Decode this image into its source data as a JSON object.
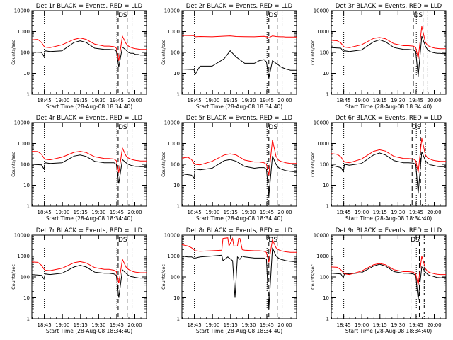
{
  "common": {
    "xlabel": "Start Time (28-Aug-08 18:34:40)",
    "ylabel": "Counts/sec",
    "x_tick_labels": [
      "18:45",
      "19:00",
      "19:15",
      "19:30",
      "19:45",
      "20:00"
    ],
    "y_tick_labels": [
      "1",
      "10",
      "100",
      "1000",
      "10000"
    ],
    "ds_label": "DS",
    "x_range_min": [
      0,
      95
    ],
    "y_range": [
      1,
      10000
    ],
    "y_scale": "log",
    "colors": {
      "events": "#000000",
      "lld": "#ff0000",
      "axes": "#000000"
    }
  },
  "chart_data": [
    {
      "type": "line",
      "title": "Det 1r BLACK = Events, RED = LLD",
      "events": {
        "x": [
          0,
          8,
          10,
          11,
          15,
          25,
          35,
          40,
          45,
          52,
          60,
          64,
          68,
          70,
          72,
          75,
          78,
          80,
          82,
          84,
          86,
          88,
          90,
          92,
          95
        ],
        "y": [
          105,
          100,
          65,
          120,
          110,
          120,
          300,
          360,
          300,
          160,
          140,
          140,
          135,
          115,
          20,
          180,
          130,
          100,
          90,
          90,
          80,
          80,
          75,
          75,
          75
        ]
      },
      "lld": {
        "x": [
          0,
          5,
          8,
          10,
          11,
          15,
          25,
          35,
          40,
          45,
          52,
          60,
          64,
          68,
          70,
          72,
          75,
          78,
          80,
          82,
          84,
          86,
          88,
          90,
          95
        ],
        "y": [
          400,
          420,
          300,
          200,
          180,
          170,
          230,
          420,
          490,
          420,
          250,
          200,
          200,
          190,
          160,
          40,
          600,
          270,
          200,
          175,
          160,
          150,
          145,
          140,
          140
        ]
      },
      "ds_x": [
        71.5,
        79
      ]
    },
    {
      "type": "line",
      "title": "Det 2r BLACK = Events, RED = LLD",
      "events": {
        "x": [
          0,
          10,
          11,
          15,
          25,
          35,
          40,
          45,
          52,
          60,
          64,
          68,
          70,
          72,
          75,
          78,
          80,
          82,
          84,
          86,
          88,
          90,
          92,
          95
        ],
        "y": [
          16,
          15,
          9,
          22,
          22,
          50,
          120,
          60,
          30,
          30,
          40,
          45,
          35,
          6,
          40,
          30,
          25,
          20,
          18,
          16,
          15,
          14,
          14,
          14
        ]
      },
      "lld": {
        "x": [
          0,
          10,
          11,
          15,
          25,
          35,
          40,
          45,
          52,
          60,
          64,
          68,
          70,
          72,
          75,
          78,
          80,
          82,
          84,
          86,
          88,
          90,
          92,
          95
        ],
        "y": [
          650,
          640,
          560,
          580,
          560,
          600,
          620,
          580,
          570,
          560,
          580,
          590,
          560,
          500,
          620,
          580,
          570,
          560,
          560,
          550,
          550,
          550,
          550,
          550
        ]
      },
      "ds_x": [
        72,
        79
      ]
    },
    {
      "type": "line",
      "title": "Det 3r BLACK = Events, RED = LLD",
      "events": {
        "x": [
          0,
          8,
          10,
          11,
          15,
          25,
          35,
          40,
          45,
          52,
          60,
          64,
          68,
          70,
          72,
          75,
          78,
          80,
          82,
          84,
          86,
          88,
          90,
          92,
          95
        ],
        "y": [
          170,
          160,
          110,
          120,
          110,
          130,
          320,
          400,
          320,
          170,
          140,
          140,
          130,
          110,
          7,
          600,
          200,
          130,
          110,
          100,
          95,
          90,
          90,
          88,
          88
        ]
      },
      "lld": {
        "x": [
          0,
          5,
          8,
          10,
          11,
          15,
          25,
          35,
          40,
          45,
          52,
          60,
          64,
          68,
          70,
          72,
          75,
          78,
          80,
          82,
          84,
          86,
          88,
          90,
          95
        ],
        "y": [
          380,
          360,
          280,
          200,
          180,
          170,
          230,
          470,
          520,
          450,
          260,
          210,
          210,
          200,
          170,
          50,
          1800,
          300,
          210,
          190,
          170,
          160,
          155,
          150,
          150
        ]
      },
      "ds_x": [
        68,
        76
      ]
    },
    {
      "type": "line",
      "title": "Det 4r BLACK = Events, RED = LLD",
      "events": {
        "x": [
          0,
          8,
          10,
          11,
          15,
          25,
          35,
          40,
          45,
          52,
          60,
          64,
          68,
          70,
          72,
          75,
          78,
          80,
          82,
          84,
          86,
          88,
          90,
          92,
          95
        ],
        "y": [
          100,
          95,
          60,
          120,
          110,
          120,
          250,
          280,
          240,
          140,
          120,
          120,
          120,
          100,
          12,
          170,
          120,
          100,
          90,
          85,
          80,
          80,
          78,
          78,
          78
        ]
      },
      "lld": {
        "x": [
          0,
          5,
          8,
          10,
          11,
          15,
          25,
          35,
          40,
          45,
          52,
          60,
          64,
          68,
          70,
          72,
          75,
          78,
          80,
          82,
          84,
          86,
          88,
          90,
          95
        ],
        "y": [
          420,
          410,
          300,
          200,
          175,
          165,
          220,
          380,
          420,
          370,
          230,
          190,
          190,
          180,
          150,
          40,
          600,
          260,
          200,
          180,
          165,
          155,
          150,
          145,
          145
        ]
      },
      "ds_x": [
        71.5,
        79
      ]
    },
    {
      "type": "line",
      "title": "Det 5r BLACK = Events, RED = LLD",
      "events": {
        "x": [
          0,
          8,
          10,
          11,
          15,
          25,
          35,
          40,
          45,
          52,
          60,
          64,
          68,
          70,
          72,
          75,
          78,
          80,
          82,
          84,
          86,
          88,
          90,
          92,
          95
        ],
        "y": [
          35,
          30,
          22,
          60,
          55,
          65,
          150,
          170,
          140,
          80,
          65,
          70,
          70,
          60,
          3,
          250,
          100,
          70,
          60,
          55,
          50,
          48,
          46,
          45,
          45
        ]
      },
      "lld": {
        "x": [
          0,
          5,
          8,
          10,
          11,
          15,
          25,
          35,
          40,
          45,
          52,
          60,
          64,
          68,
          70,
          72,
          75,
          78,
          80,
          82,
          84,
          86,
          88,
          90,
          95
        ],
        "y": [
          200,
          220,
          170,
          110,
          100,
          95,
          140,
          280,
          320,
          280,
          160,
          130,
          130,
          120,
          100,
          30,
          1500,
          240,
          160,
          140,
          130,
          120,
          115,
          110,
          110
        ]
      },
      "ds_x": [
        72,
        79
      ]
    },
    {
      "type": "line",
      "title": "Det 6r BLACK = Events, RED = LLD",
      "events": {
        "x": [
          0,
          8,
          10,
          11,
          15,
          25,
          35,
          40,
          45,
          52,
          60,
          64,
          68,
          70,
          72,
          75,
          78,
          80,
          82,
          84,
          86,
          88,
          90,
          92,
          95
        ],
        "y": [
          90,
          70,
          45,
          100,
          90,
          110,
          280,
          350,
          280,
          150,
          120,
          120,
          115,
          100,
          4,
          400,
          150,
          110,
          95,
          90,
          85,
          80,
          78,
          78,
          78
        ]
      },
      "lld": {
        "x": [
          0,
          5,
          8,
          10,
          11,
          15,
          25,
          35,
          40,
          45,
          52,
          60,
          64,
          68,
          70,
          72,
          75,
          78,
          80,
          82,
          84,
          86,
          88,
          90,
          95
        ],
        "y": [
          330,
          300,
          230,
          150,
          130,
          120,
          180,
          420,
          500,
          430,
          240,
          190,
          190,
          180,
          150,
          40,
          1800,
          280,
          200,
          180,
          160,
          150,
          145,
          140,
          140
        ]
      },
      "ds_x": [
        67,
        74
      ]
    },
    {
      "type": "line",
      "title": "Det 7r BLACK = Events, RED = LLD",
      "events": {
        "x": [
          0,
          8,
          10,
          11,
          15,
          25,
          35,
          40,
          45,
          52,
          60,
          64,
          68,
          70,
          72,
          75,
          78,
          80,
          82,
          84,
          86,
          88,
          90,
          92,
          95
        ],
        "y": [
          130,
          120,
          80,
          140,
          130,
          150,
          300,
          360,
          300,
          170,
          150,
          150,
          140,
          120,
          10,
          220,
          150,
          120,
          105,
          100,
          95,
          90,
          88,
          88,
          88
        ]
      },
      "lld": {
        "x": [
          0,
          5,
          8,
          10,
          11,
          15,
          25,
          35,
          40,
          45,
          52,
          60,
          64,
          68,
          70,
          72,
          75,
          78,
          80,
          82,
          84,
          86,
          88,
          90,
          95
        ],
        "y": [
          520,
          500,
          360,
          240,
          210,
          200,
          260,
          480,
          540,
          470,
          280,
          230,
          230,
          210,
          180,
          50,
          700,
          300,
          230,
          200,
          180,
          170,
          165,
          160,
          160
        ]
      },
      "ds_x": [
        71.5,
        79
      ]
    },
    {
      "type": "line",
      "title": "Det 8r BLACK = Events, RED = LLD",
      "events": {
        "x": [
          0,
          5,
          8,
          10,
          11,
          15,
          25,
          33,
          34,
          38,
          42,
          44,
          46,
          48,
          50,
          52,
          60,
          64,
          68,
          70,
          72,
          75,
          78,
          80,
          82,
          84,
          86,
          88,
          90,
          92,
          95
        ],
        "y": [
          1000,
          900,
          900,
          800,
          800,
          900,
          1000,
          1100,
          600,
          900,
          600,
          10,
          900,
          700,
          1000,
          900,
          800,
          800,
          800,
          700,
          3,
          2500,
          1000,
          800,
          700,
          650,
          600,
          580,
          560,
          550,
          550
        ]
      },
      "lld": {
        "x": [
          0,
          5,
          8,
          10,
          11,
          15,
          25,
          33,
          34,
          38,
          39,
          42,
          43,
          46,
          47,
          48,
          50,
          52,
          60,
          64,
          68,
          70,
          72,
          75,
          78,
          80,
          82,
          84,
          86,
          88,
          90,
          95
        ],
        "y": [
          3500,
          3000,
          2500,
          2000,
          1800,
          1700,
          1800,
          1900,
          7000,
          7500,
          3000,
          7000,
          3000,
          3000,
          7000,
          7000,
          2000,
          1900,
          1800,
          1800,
          1700,
          1500,
          500,
          6000,
          2500,
          2000,
          1800,
          1700,
          1600,
          1550,
          1500,
          1500
        ]
      },
      "ds_x": [
        72,
        79
      ]
    },
    {
      "type": "line",
      "title": "Det 9r BLACK = Events, RED = LLD",
      "events": {
        "x": [
          0,
          8,
          10,
          11,
          15,
          25,
          35,
          40,
          45,
          52,
          60,
          64,
          68,
          70,
          72,
          75,
          78,
          80,
          82,
          84,
          86,
          88,
          90,
          92,
          95
        ],
        "y": [
          150,
          140,
          90,
          150,
          140,
          160,
          330,
          400,
          330,
          180,
          150,
          150,
          140,
          120,
          8,
          300,
          170,
          130,
          115,
          110,
          100,
          95,
          92,
          92,
          92
        ]
      },
      "lld": {
        "x": [
          0,
          5,
          8,
          10,
          11,
          15,
          25,
          35,
          40,
          45,
          52,
          60,
          64,
          68,
          70,
          72,
          75,
          78,
          80,
          82,
          84,
          86,
          88,
          90,
          95
        ],
        "y": [
          300,
          290,
          220,
          160,
          140,
          130,
          190,
          380,
          440,
          380,
          220,
          180,
          180,
          170,
          140,
          40,
          1000,
          250,
          180,
          160,
          150,
          140,
          135,
          130,
          130
        ]
      },
      "ds_x": [
        66,
        73
      ]
    }
  ]
}
